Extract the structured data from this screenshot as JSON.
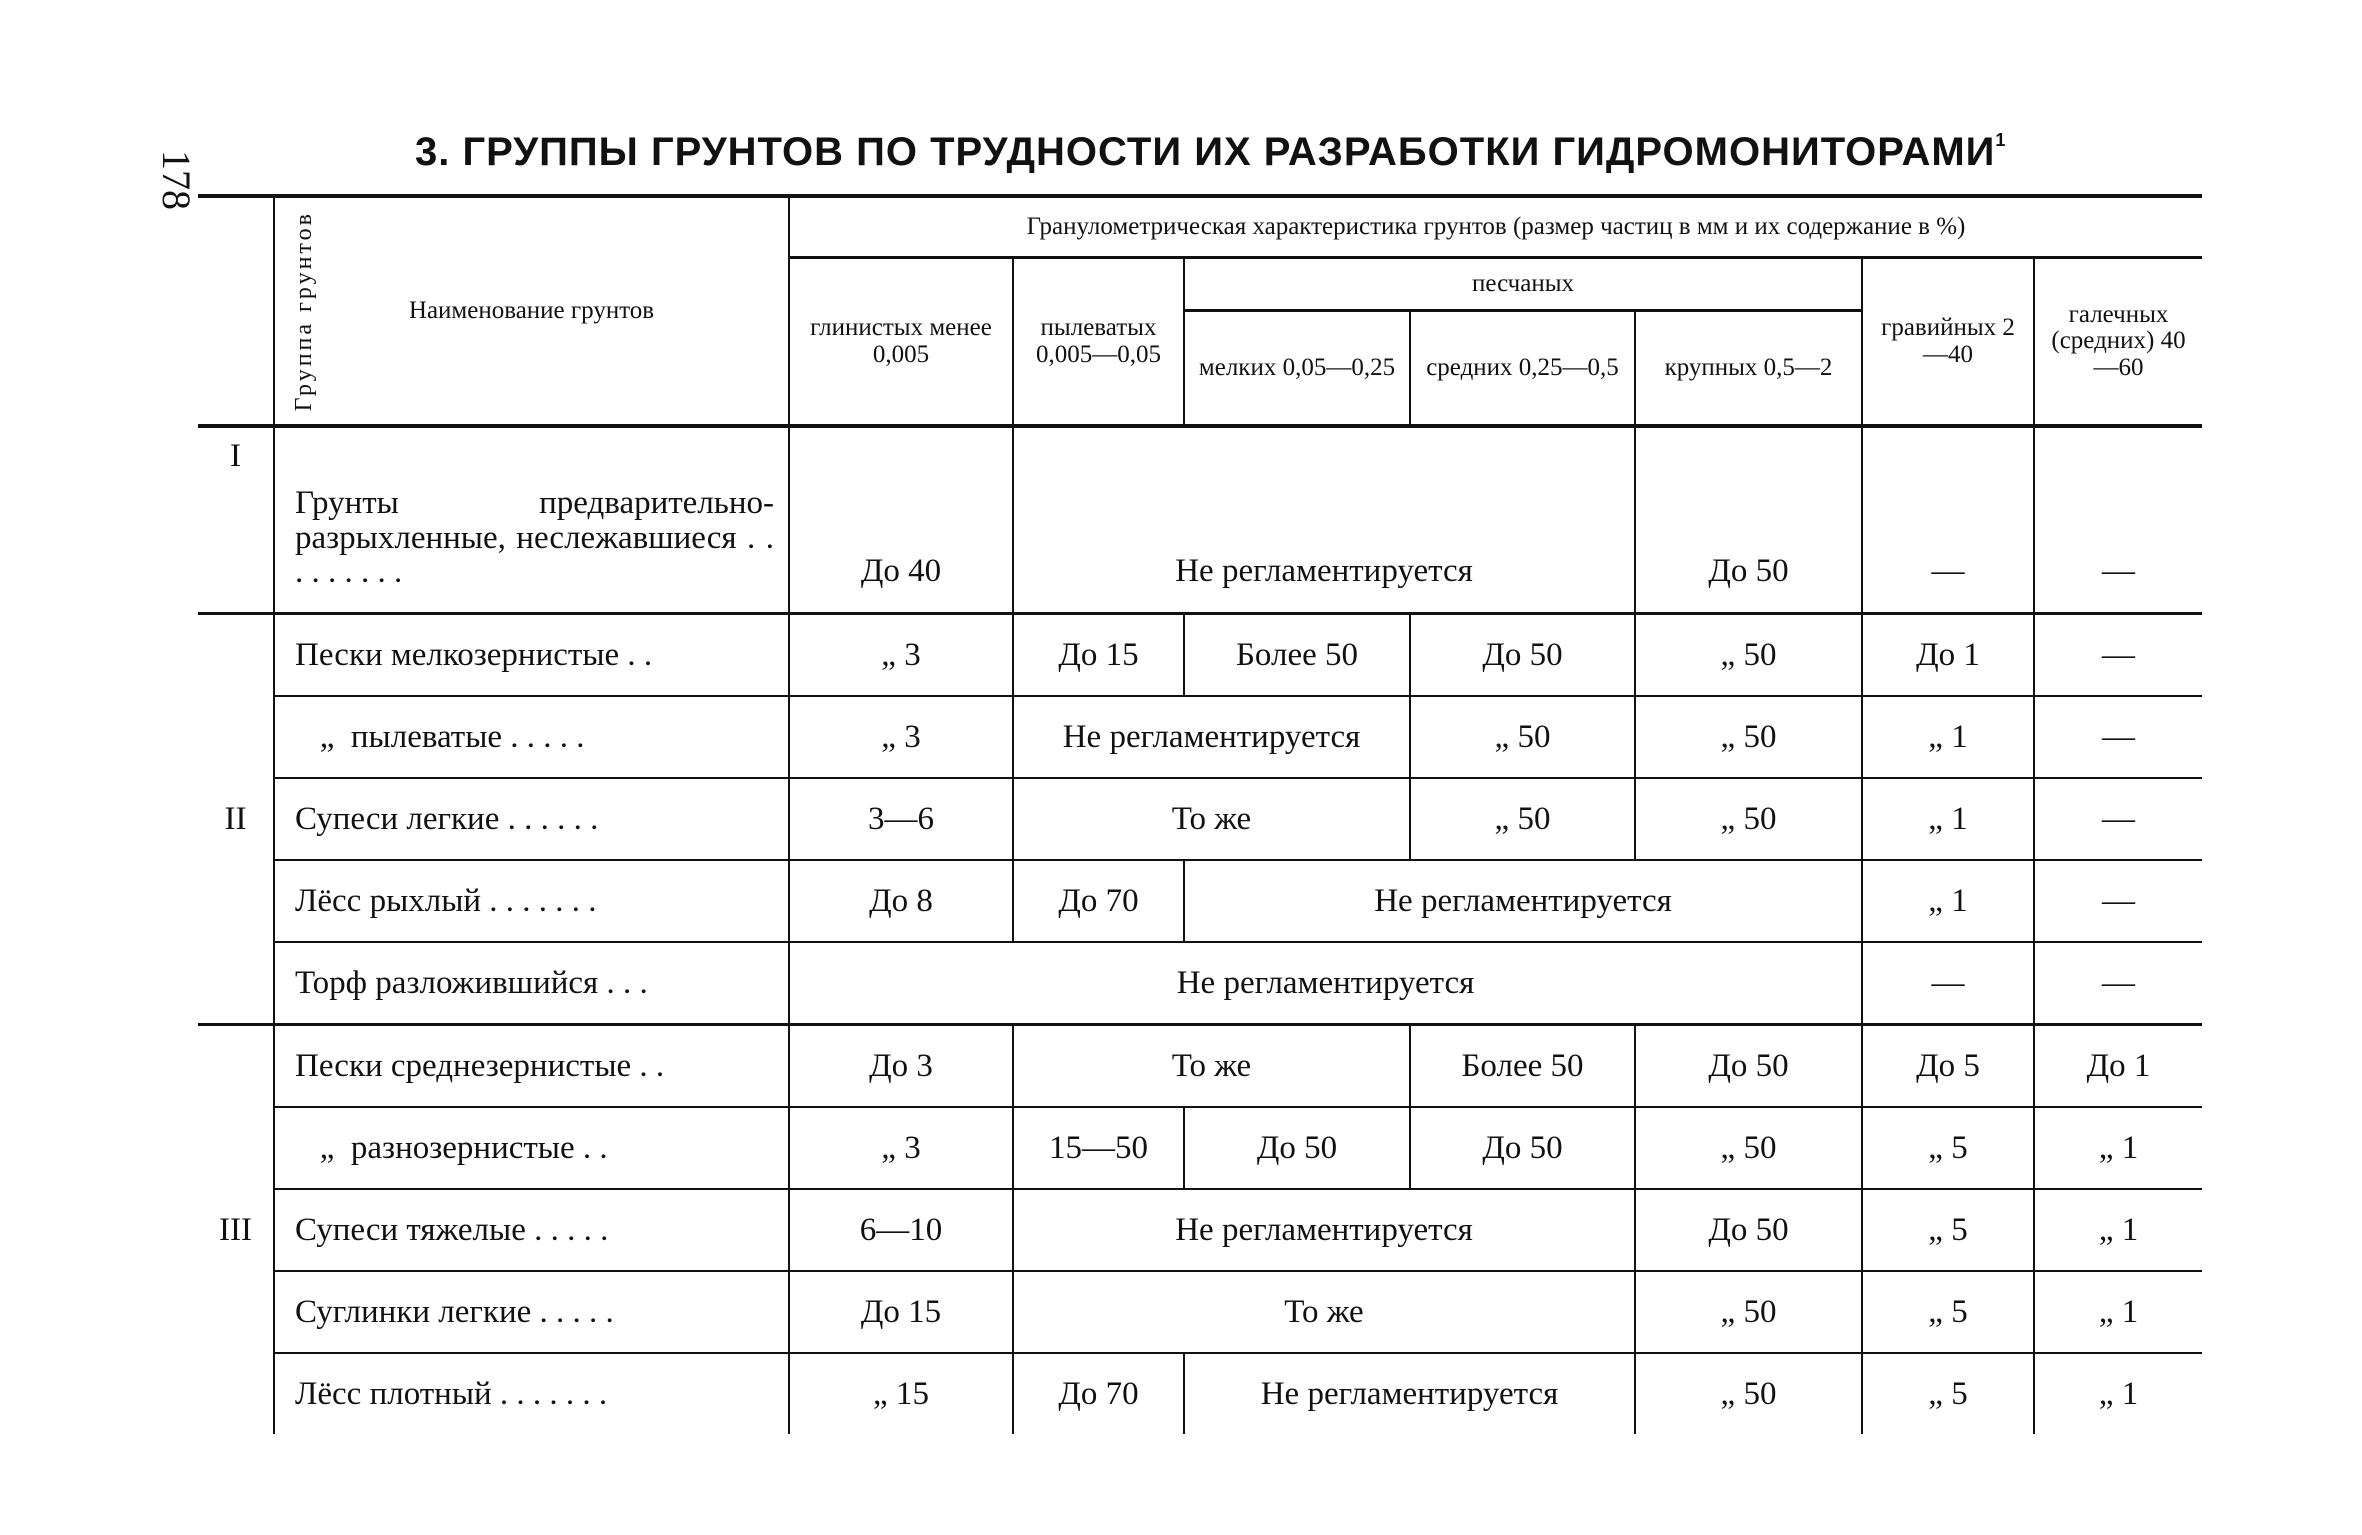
{
  "page_number": "178",
  "title": "3. ГРУППЫ ГРУНТОВ ПО ТРУДНОСТИ ИХ РАЗРАБОТКИ ГИДРОМОНИТОРАМИ",
  "title_footnote": "1",
  "header": {
    "group": "Группа грунтов",
    "name": "Наименование грунтов",
    "granulometric": "Гранулометрическая характеристика грунтов (размер частиц в мм и их содержание в %)",
    "clay": "глинистых менее 0,005",
    "silt": "пылеватых 0,005—0,05",
    "sand": "песчаных",
    "sand_fine": "мелких 0,05—0,25",
    "sand_medium": "средних 0,25—0,5",
    "sand_coarse": "крупных 0,5—2",
    "gravel": "гравийных 2—40",
    "pebble": "галечных (средних) 40—60"
  },
  "groups": [
    {
      "label": "I",
      "rows": [
        {
          "name": "Грунты предварительно-разрыхленные, неслежавшиеся . . . . . . . . .",
          "cells": [
            [
              "До 40",
              1
            ],
            [
              "Не регламентируется",
              3
            ],
            [
              "До 50",
              1
            ],
            [
              "—",
              1
            ],
            [
              "—",
              1
            ]
          ]
        }
      ]
    },
    {
      "label": "II",
      "rows": [
        {
          "name": "Пески мелкозернистые . .",
          "cells": [
            [
              "„ 3",
              1
            ],
            [
              "До 15",
              1
            ],
            [
              "Более 50",
              1
            ],
            [
              "До 50",
              1
            ],
            [
              "„ 50",
              1
            ],
            [
              "До 1",
              1
            ],
            [
              "—",
              1
            ]
          ]
        },
        {
          "name": "   „  пылеватые . . . . .",
          "cells": [
            [
              "„ 3",
              1
            ],
            [
              "Не регламентируется",
              2
            ],
            [
              "„ 50",
              1
            ],
            [
              "„ 50",
              1
            ],
            [
              "„ 1",
              1
            ],
            [
              "—",
              1
            ]
          ]
        },
        {
          "name": "Супеси легкие . . . . . .",
          "cells": [
            [
              "3—6",
              1
            ],
            [
              "То же",
              2
            ],
            [
              "„ 50",
              1
            ],
            [
              "„ 50",
              1
            ],
            [
              "„ 1",
              1
            ],
            [
              "—",
              1
            ]
          ]
        },
        {
          "name": "Лёсс рыхлый . . . . . . .",
          "cells": [
            [
              "До 8",
              1
            ],
            [
              "До 70",
              1
            ],
            [
              "Не регламентируется",
              3
            ],
            [
              "„ 1",
              1
            ],
            [
              "—",
              1
            ]
          ]
        },
        {
          "name": "Торф разложившийся . . .",
          "cells": [
            [
              "Не регламентируется",
              5
            ],
            [
              "—",
              1
            ],
            [
              "—",
              1
            ]
          ]
        }
      ]
    },
    {
      "label": "III",
      "rows": [
        {
          "name": "Пески среднезернистые . .",
          "cells": [
            [
              "До 3",
              1
            ],
            [
              "То же",
              2
            ],
            [
              "Более 50",
              1
            ],
            [
              "До 50",
              1
            ],
            [
              "До 5",
              1
            ],
            [
              "До 1",
              1
            ]
          ]
        },
        {
          "name": "   „  разнозернистые . .",
          "cells": [
            [
              "„ 3",
              1
            ],
            [
              "15—50",
              1
            ],
            [
              "До 50",
              1
            ],
            [
              "До 50",
              1
            ],
            [
              "„ 50",
              1
            ],
            [
              "„ 5",
              1
            ],
            [
              "„ 1",
              1
            ]
          ]
        },
        {
          "name": "Супеси тяжелые . . . . .",
          "cells": [
            [
              "6—10",
              1
            ],
            [
              "Не регламентируется",
              3
            ],
            [
              "До 50",
              1
            ],
            [
              "„ 5",
              1
            ],
            [
              "„ 1",
              1
            ]
          ]
        },
        {
          "name": "Суглинки легкие . . . . .",
          "cells": [
            [
              "До 15",
              1
            ],
            [
              "То же",
              3
            ],
            [
              "„ 50",
              1
            ],
            [
              "„ 5",
              1
            ],
            [
              "„ 1",
              1
            ]
          ]
        },
        {
          "name": "Лёсс плотный . . . . . . .",
          "cells": [
            [
              "„ 15",
              1
            ],
            [
              "До 70",
              1
            ],
            [
              "Не регламентируется",
              2
            ],
            [
              "„ 50",
              1
            ],
            [
              "„ 5",
              1
            ],
            [
              "„ 1",
              1
            ]
          ]
        }
      ]
    }
  ]
}
